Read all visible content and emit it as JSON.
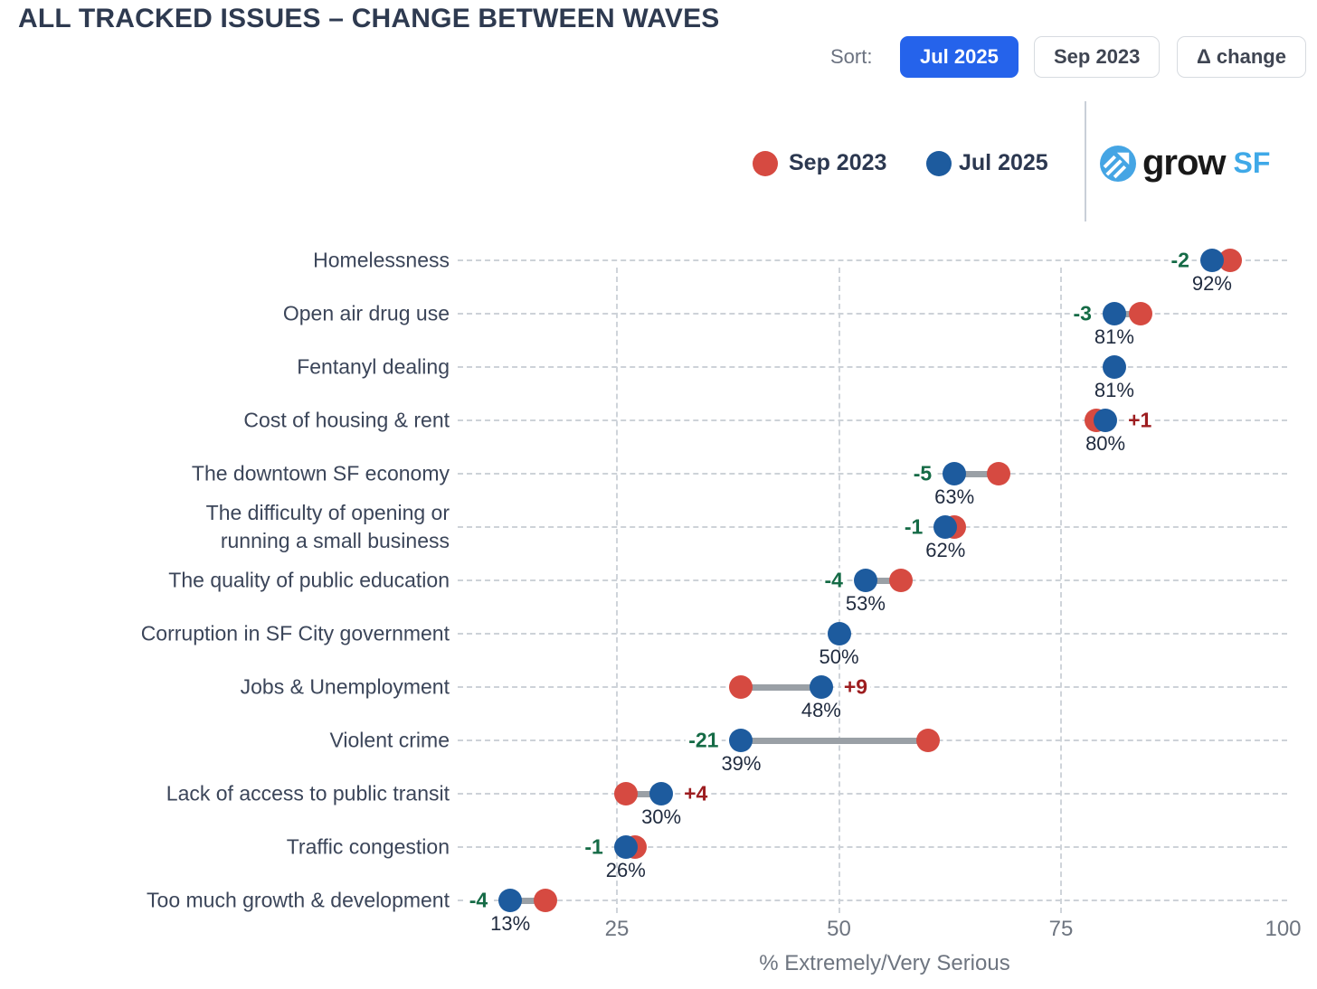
{
  "title": "ALL TRACKED ISSUES – CHANGE BETWEEN WAVES",
  "sort": {
    "label": "Sort:",
    "buttons": [
      {
        "label": "Jul 2025",
        "active": true
      },
      {
        "label": "Sep 2023",
        "active": false
      },
      {
        "label": "Δ change",
        "active": false
      }
    ]
  },
  "legend": {
    "items": [
      {
        "label": "Sep 2023",
        "color": "#d64a41"
      },
      {
        "label": "Jul 2025",
        "color": "#1d5b9e"
      }
    ]
  },
  "logo": {
    "word": "grow",
    "suffix": "SF"
  },
  "chart_data": {
    "type": "dumbbell",
    "title": "ALL TRACKED ISSUES – CHANGE BETWEEN WAVES",
    "xlabel": "% Extremely/Very Serious",
    "xlim": [
      0,
      100
    ],
    "xticks": [
      25,
      50,
      75,
      100
    ],
    "vgrid_ticks": [
      25,
      50,
      75
    ],
    "grid": true,
    "legend_position": "top",
    "series_names": [
      "Sep 2023",
      "Jul 2025"
    ],
    "colors": {
      "sep2023": "#d64a41",
      "jul2025": "#1d5b9e",
      "negative_change": "#156b46",
      "positive_change": "#9d1d20",
      "connector": "#9aa0a6"
    },
    "points": [
      {
        "category": "Homelessness",
        "sep2023": 94,
        "jul2025": 92,
        "change": "-2",
        "value_label": "92%"
      },
      {
        "category": "Open air drug use",
        "sep2023": 84,
        "jul2025": 81,
        "change": "-3",
        "value_label": "81%"
      },
      {
        "category": "Fentanyl dealing",
        "sep2023": null,
        "jul2025": 81,
        "change": null,
        "value_label": "81%"
      },
      {
        "category": "Cost of housing & rent",
        "sep2023": 79,
        "jul2025": 80,
        "change": "+1",
        "value_label": "80%"
      },
      {
        "category": "The downtown SF economy",
        "sep2023": 68,
        "jul2025": 63,
        "change": "-5",
        "value_label": "63%"
      },
      {
        "category": "The difficulty of opening or\nrunning a small business",
        "sep2023": 63,
        "jul2025": 62,
        "change": "-1",
        "value_label": "62%"
      },
      {
        "category": "The quality of public education",
        "sep2023": 57,
        "jul2025": 53,
        "change": "-4",
        "value_label": "53%"
      },
      {
        "category": "Corruption in SF City government",
        "sep2023": null,
        "jul2025": 50,
        "change": null,
        "value_label": "50%"
      },
      {
        "category": "Jobs & Unemployment",
        "sep2023": 39,
        "jul2025": 48,
        "change": "+9",
        "value_label": "48%"
      },
      {
        "category": "Violent crime",
        "sep2023": 60,
        "jul2025": 39,
        "change": "-21",
        "value_label": "39%"
      },
      {
        "category": "Lack of access to public transit",
        "sep2023": 26,
        "jul2025": 30,
        "change": "+4",
        "value_label": "30%"
      },
      {
        "category": "Traffic congestion",
        "sep2023": 27,
        "jul2025": 26,
        "change": "-1",
        "value_label": "26%"
      },
      {
        "category": "Too much growth & development",
        "sep2023": 17,
        "jul2025": 13,
        "change": "-4",
        "value_label": "13%"
      }
    ]
  }
}
